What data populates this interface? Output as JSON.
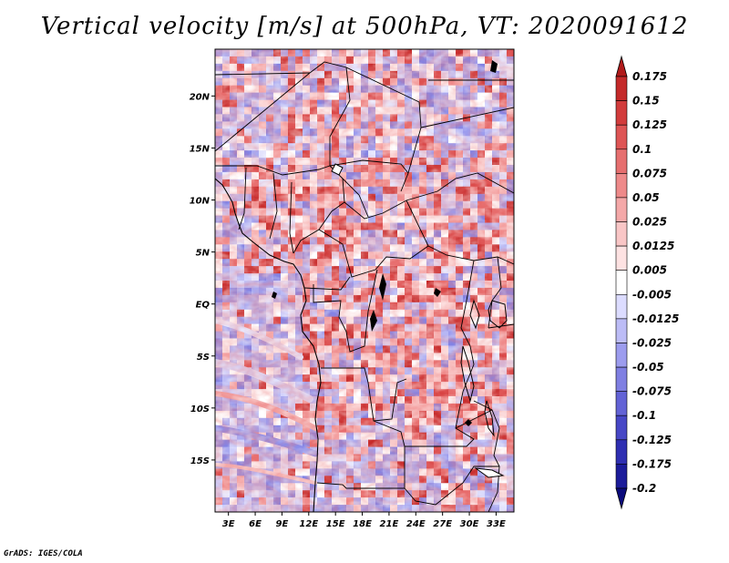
{
  "chart_data": {
    "type": "heatmap",
    "title": "Vertical velocity [m/s] at 500hPa, VT: 2020091612",
    "xlabel": "",
    "ylabel": "",
    "x_ticks": [
      "3E",
      "6E",
      "9E",
      "12E",
      "15E",
      "18E",
      "21E",
      "24E",
      "27E",
      "30E",
      "33E"
    ],
    "y_ticks": [
      "20N",
      "15N",
      "10N",
      "5N",
      "EQ",
      "5S",
      "10S",
      "15S"
    ],
    "lon_range": [
      1.5,
      35
    ],
    "lat_range": [
      -20,
      24.5
    ],
    "colorbar": {
      "levels": [
        "0.175",
        "0.15",
        "0.125",
        "0.1",
        "0.075",
        "0.05",
        "0.025",
        "0.0125",
        "0.005",
        "-0.005",
        "-0.0125",
        "-0.025",
        "-0.05",
        "-0.075",
        "-0.1",
        "-0.125",
        "-0.175",
        "-0.2"
      ],
      "colors": [
        "#b01a1a",
        "#c42a2a",
        "#d23c3c",
        "#de5555",
        "#e66f6f",
        "#ee8a8a",
        "#f4a8a8",
        "#f9c6c6",
        "#fde2e2",
        "#ffffff",
        "#dcdcff",
        "#bcbcf6",
        "#9c9cee",
        "#7f7fe2",
        "#6363d6",
        "#4747c6",
        "#2f2fb2",
        "#1c1c9a",
        "#0b0b7c"
      ]
    },
    "legend": "right"
  },
  "footer": {
    "credit": "GrADS: IGES/COLA"
  }
}
